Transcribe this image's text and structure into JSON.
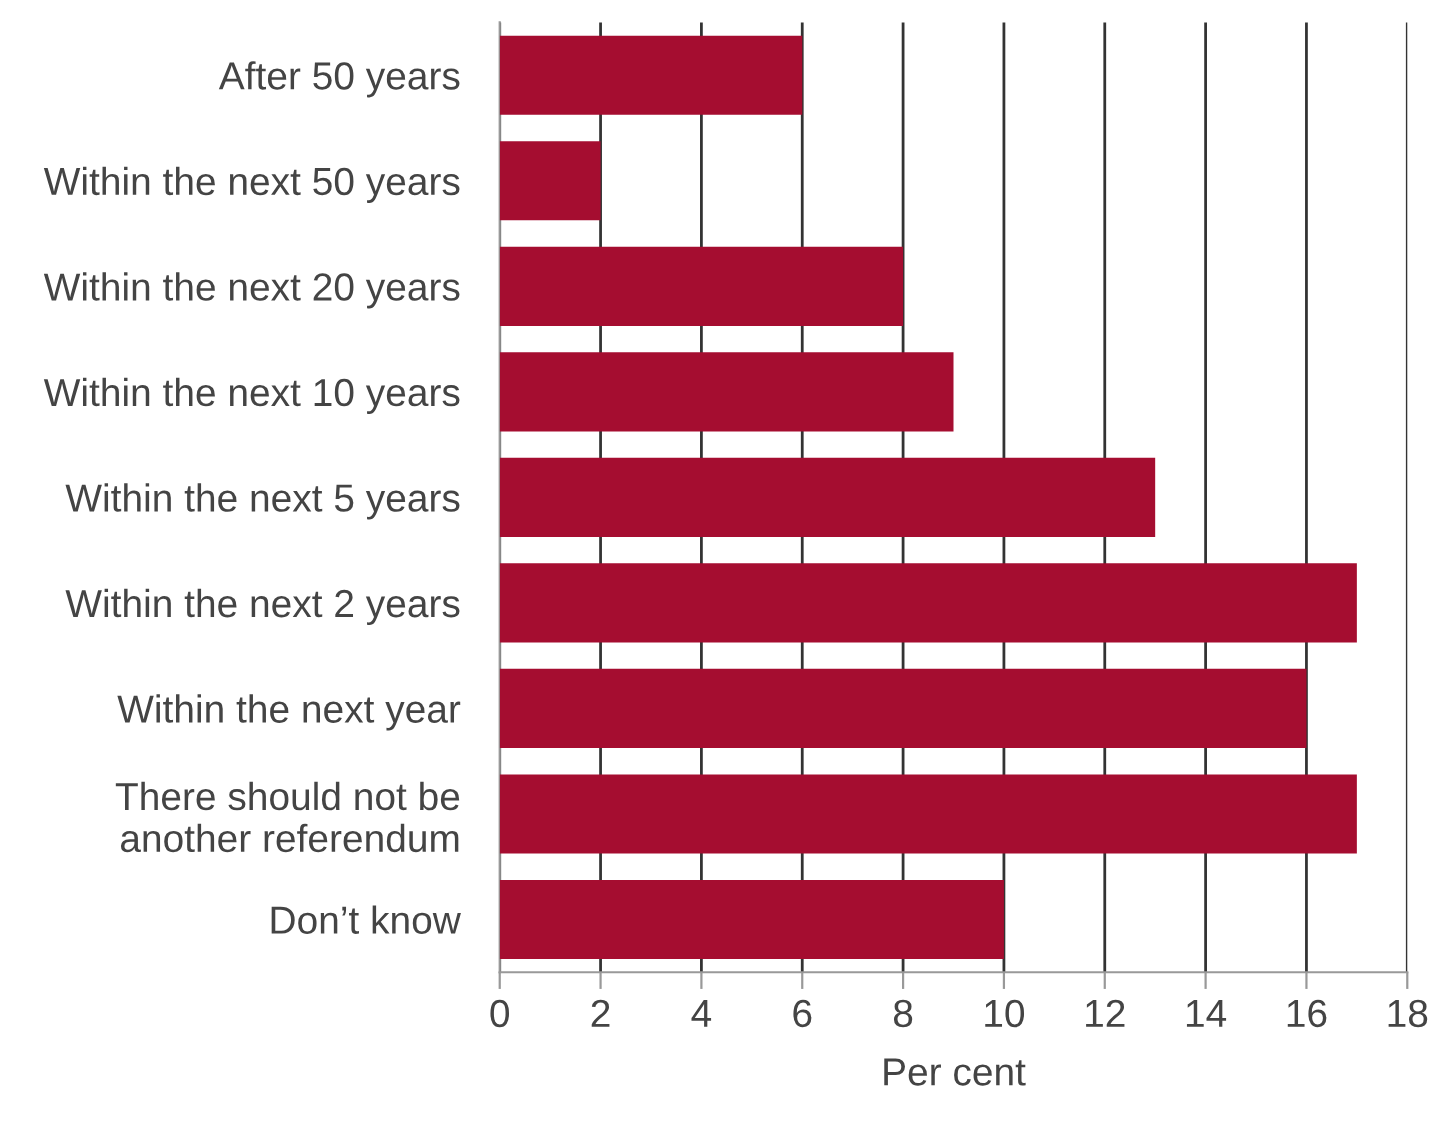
{
  "chart_data": {
    "type": "bar",
    "orientation": "horizontal",
    "xlabel": "Per cent",
    "categories": [
      "After 50 years",
      "Within the next 50 years",
      "Within the next 20 years",
      "Within the next 10 years",
      "Within the next 5 years",
      "Within the next 2 years",
      "Within the next year",
      "There should not be\nanother referendum",
      "Don’t know"
    ],
    "values": [
      6,
      2,
      8,
      9,
      13,
      17,
      16,
      17,
      10
    ],
    "color": "#a50d30",
    "xlim": [
      0,
      18
    ],
    "xticks": [
      0,
      2,
      4,
      6,
      8,
      10,
      12,
      14,
      16,
      18
    ],
    "grid": "x"
  }
}
